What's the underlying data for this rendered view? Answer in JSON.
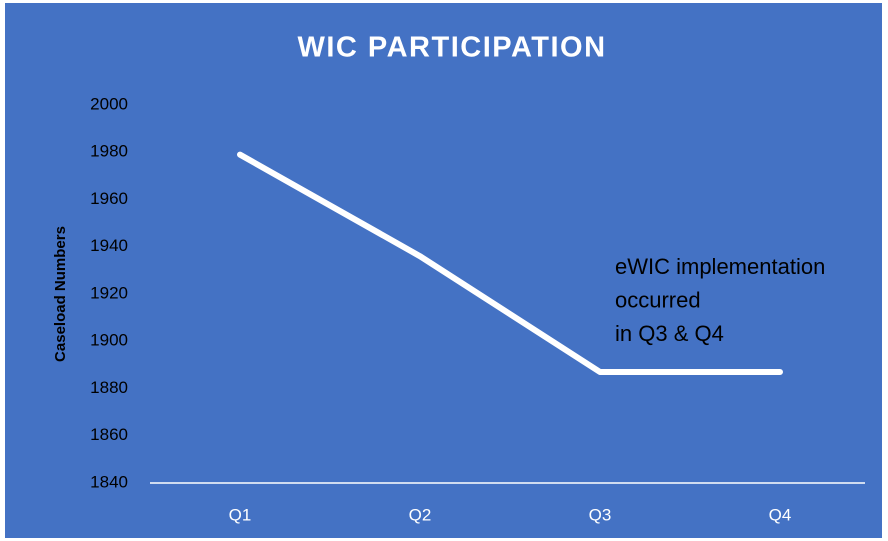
{
  "chart_data": {
    "type": "line",
    "title": "WIC PARTICIPATION",
    "y_label": "Caseload Numbers",
    "categories": [
      "Q1",
      "Q2",
      "Q3",
      "Q4"
    ],
    "values": [
      1979,
      1936,
      1887,
      1887
    ],
    "color": "#ffffff",
    "ylim": [
      1840,
      2000
    ],
    "yticks": [
      1840,
      1860,
      1880,
      1900,
      1920,
      1940,
      1960,
      1980,
      2000
    ],
    "grid": false,
    "annotation": [
      "eWIC implementation",
      "occurred",
      "in Q3 & Q4"
    ]
  }
}
